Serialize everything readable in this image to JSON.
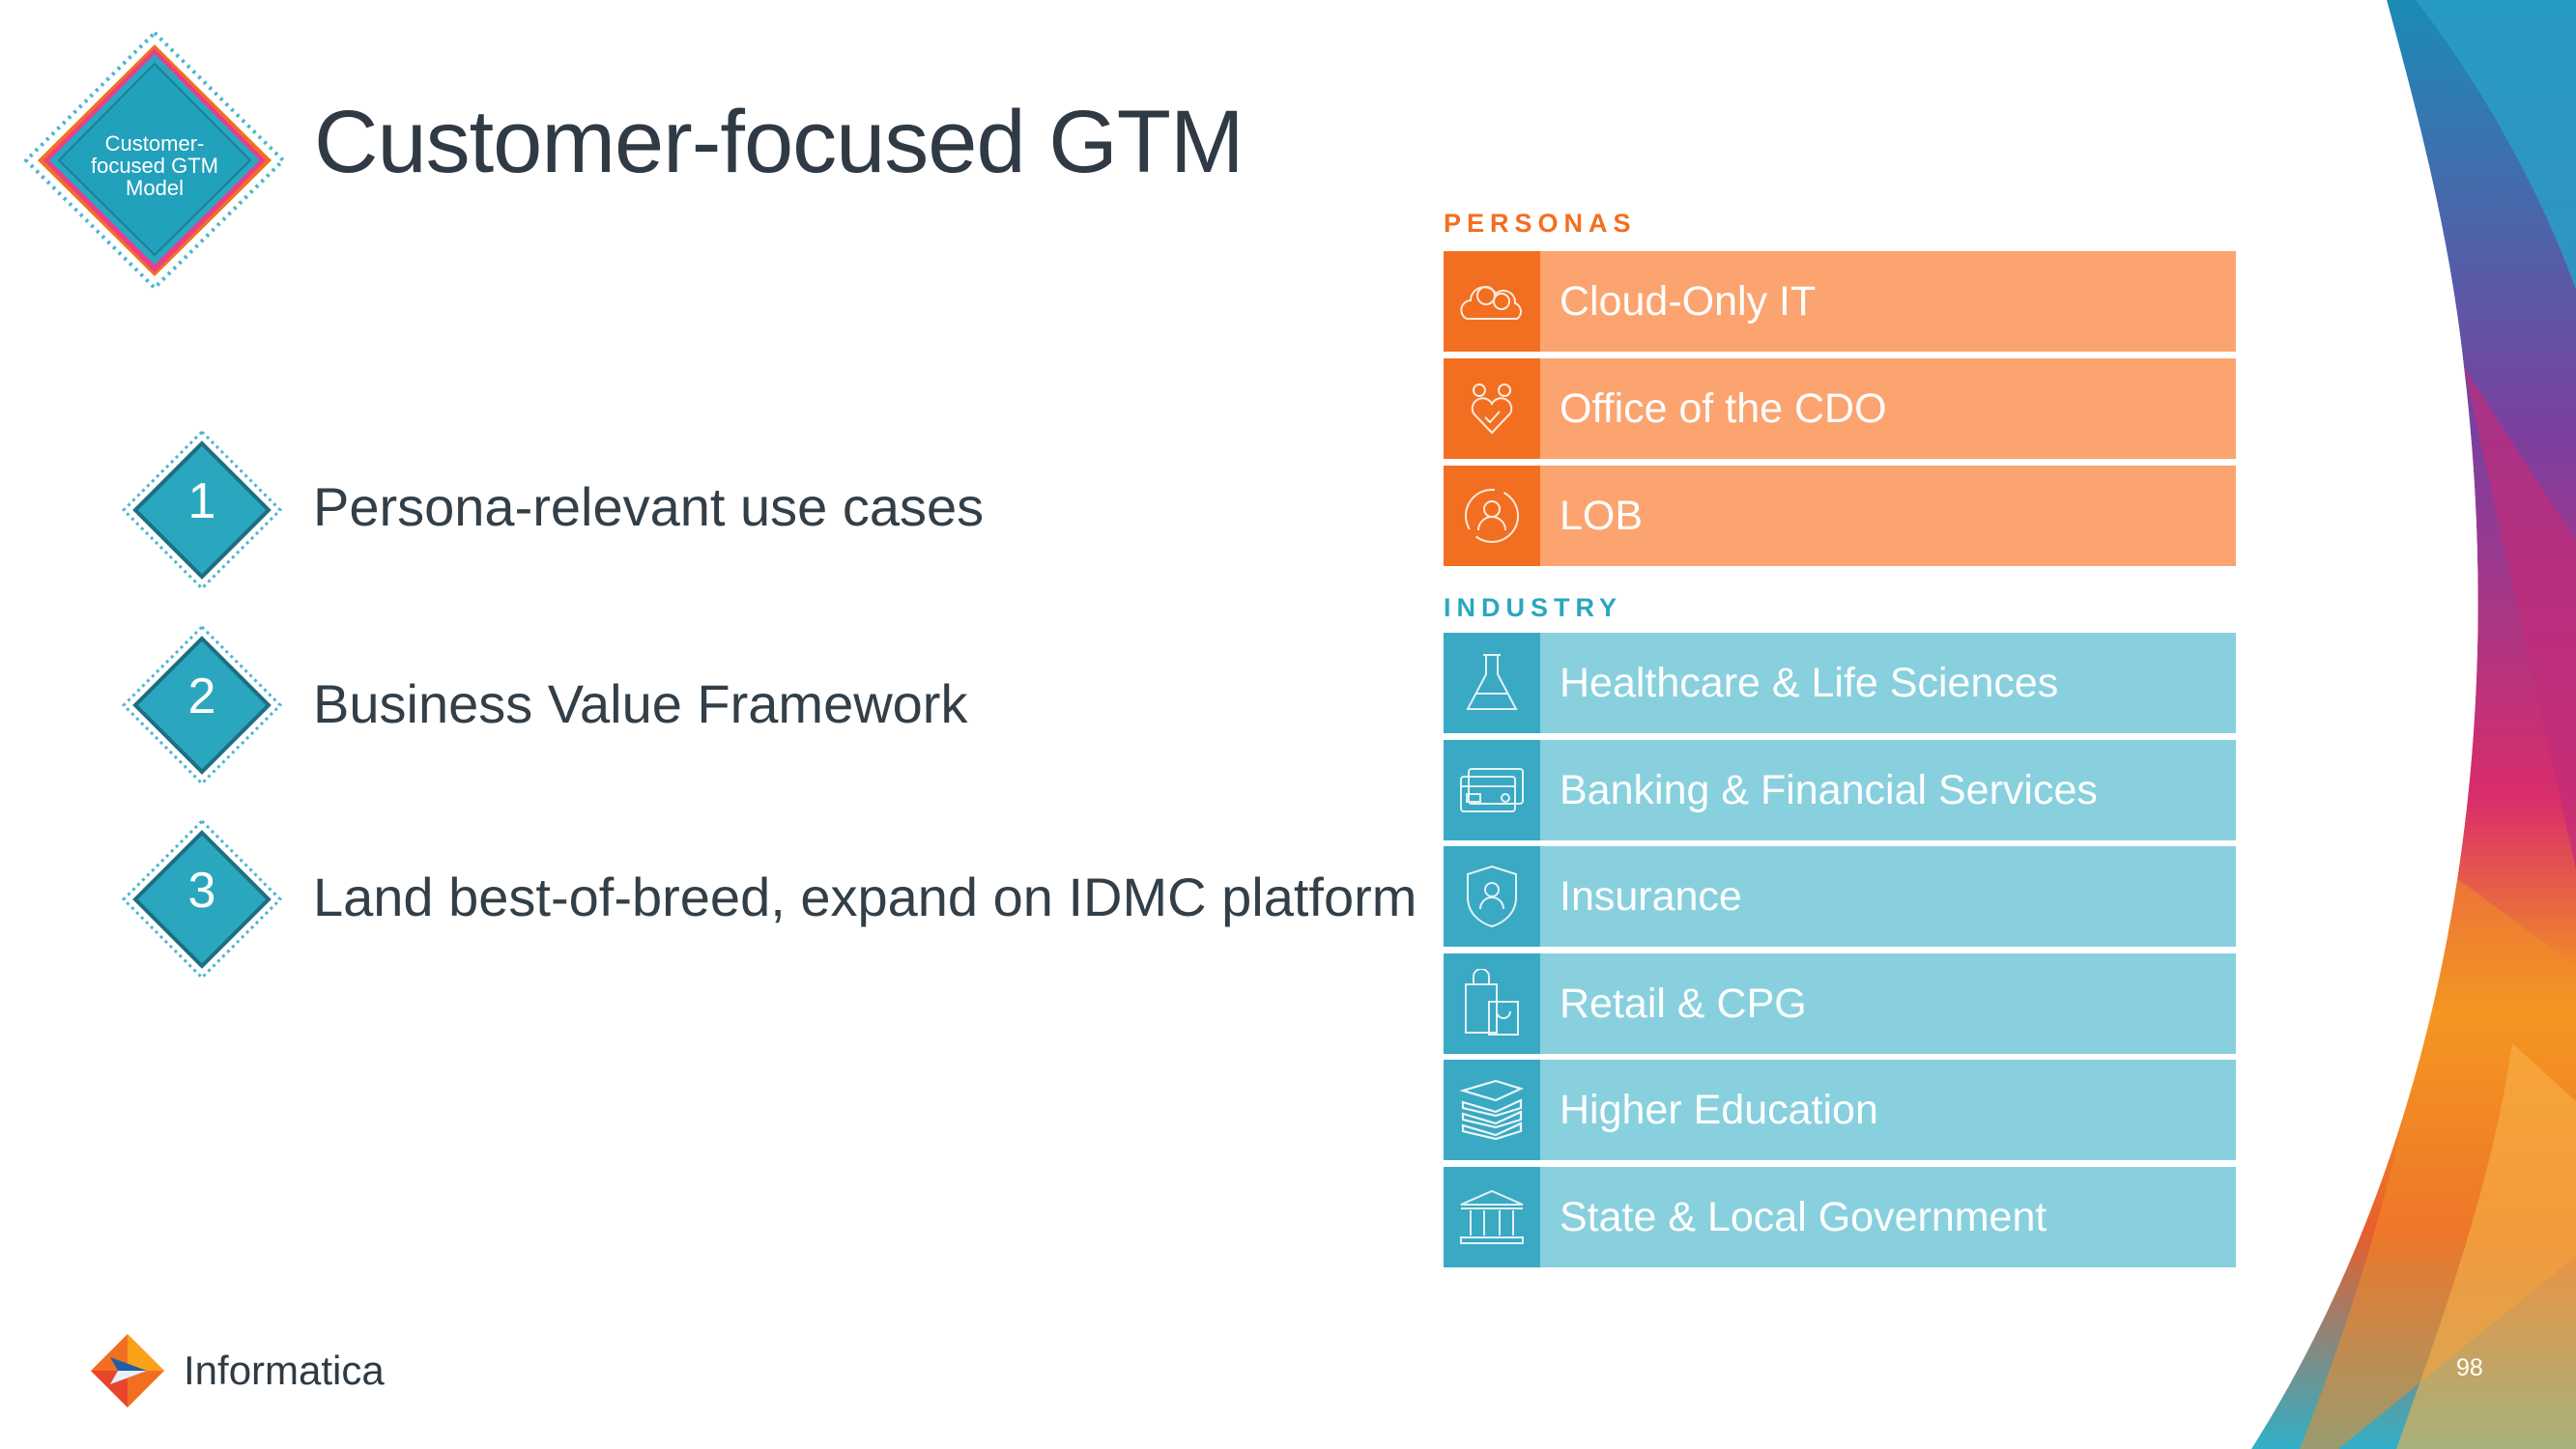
{
  "title": "Customer-focused GTM",
  "model_badge": {
    "line1": "Customer-",
    "line2": "focused GTM",
    "line3": "Model"
  },
  "points": [
    {
      "num": "1",
      "text": "Persona-relevant use cases"
    },
    {
      "num": "2",
      "text": "Business Value Framework"
    },
    {
      "num": "3",
      "text": "Land best-of-breed, expand on IDMC platform"
    }
  ],
  "personas": {
    "label": "PERSONAS",
    "items": [
      {
        "icon": "cloud-icon",
        "label": "Cloud-Only IT"
      },
      {
        "icon": "team-heart-icon",
        "label": "Office of the CDO"
      },
      {
        "icon": "user-cycle-icon",
        "label": "LOB"
      }
    ]
  },
  "industry": {
    "label": "INDUSTRY",
    "items": [
      {
        "icon": "flask-icon",
        "label": "Healthcare & Life Sciences"
      },
      {
        "icon": "credit-card-icon",
        "label": "Banking & Financial Services"
      },
      {
        "icon": "shield-user-icon",
        "label": "Insurance"
      },
      {
        "icon": "shopping-bags-icon",
        "label": "Retail & CPG"
      },
      {
        "icon": "books-icon",
        "label": "Higher Education"
      },
      {
        "icon": "government-building-icon",
        "label": "State & Local Government"
      }
    ]
  },
  "logo": {
    "text": "Informatica"
  },
  "page_number": "98",
  "colors": {
    "persona_dark": "#f26f21",
    "persona_light": "#fba46f",
    "industry_dark": "#3aa9c3",
    "industry_light": "#88d0de",
    "teal_badge": "#2aa7bf"
  }
}
